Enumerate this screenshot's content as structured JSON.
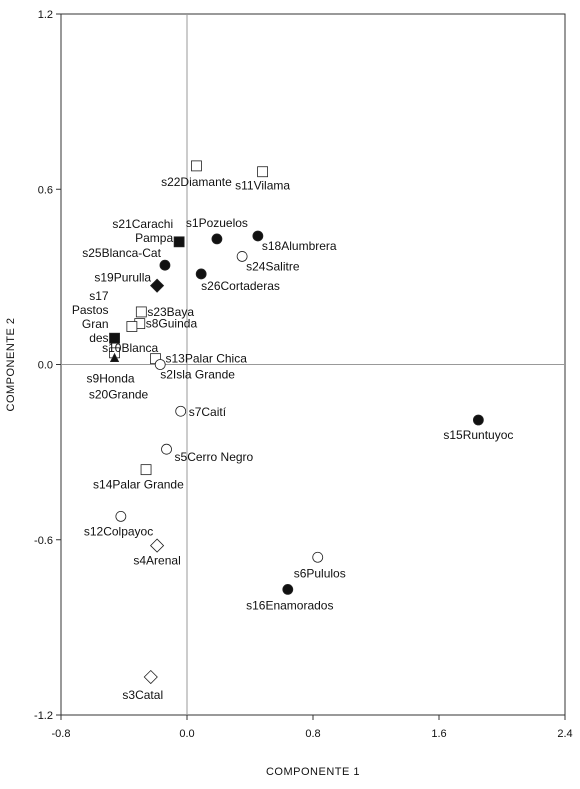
{
  "chart_data": {
    "type": "scatter",
    "xlabel": "COMPONENTE 1",
    "ylabel": "COMPONENTE 2",
    "xlim": [
      -0.8,
      2.4
    ],
    "ylim": [
      -1.2,
      1.2
    ],
    "xticks": [
      "-0.8",
      "0.0",
      "0.8",
      "1.6",
      "2.4"
    ],
    "xtick_values": [
      -0.8,
      0.0,
      0.8,
      1.6,
      2.4
    ],
    "yticks": [
      "1.2",
      "0.6",
      "0.0",
      "-0.6",
      "-1.2"
    ],
    "ytick_values": [
      1.2,
      0.6,
      0.0,
      -0.6,
      -1.2
    ],
    "reference_lines": {
      "x": 0,
      "y": 0
    },
    "points": [
      {
        "x": 0.06,
        "y": 0.68,
        "marker": "open-square",
        "label": [
          "s22Diamante"
        ],
        "anchor": "middle",
        "dx": 0,
        "dy": 20
      },
      {
        "x": 0.48,
        "y": 0.66,
        "marker": "open-square",
        "label": [
          "s11Vilama"
        ],
        "anchor": "middle",
        "dx": 0,
        "dy": 18
      },
      {
        "x": -0.05,
        "y": 0.42,
        "marker": "filled-square",
        "label": [
          "s21Carachi",
          "Pampa"
        ],
        "anchor": "end",
        "dx": -6,
        "dy": -14
      },
      {
        "x": 0.19,
        "y": 0.43,
        "marker": "filled-circle",
        "label": [
          "s1Pozuelos"
        ],
        "anchor": "middle",
        "dx": 0,
        "dy": -12
      },
      {
        "x": 0.45,
        "y": 0.44,
        "marker": "filled-circle",
        "label": [
          "s18Alumbrera"
        ],
        "anchor": "start",
        "dx": 4,
        "dy": 14
      },
      {
        "x": -0.14,
        "y": 0.34,
        "marker": "filled-circle",
        "label": [
          "s25Blanca-Cat"
        ],
        "anchor": "end",
        "dx": -4,
        "dy": -8
      },
      {
        "x": 0.35,
        "y": 0.37,
        "marker": "open-circle",
        "label": [
          "s24Salitre"
        ],
        "anchor": "start",
        "dx": 4,
        "dy": 14
      },
      {
        "x": 0.09,
        "y": 0.31,
        "marker": "filled-circle",
        "label": [
          "s26Cortaderas"
        ],
        "anchor": "start",
        "dx": 0,
        "dy": 16
      },
      {
        "x": -0.19,
        "y": 0.27,
        "marker": "filled-diamond",
        "label": [
          "s19Purulla"
        ],
        "anchor": "end",
        "dx": -6,
        "dy": -4
      },
      {
        "x": -0.29,
        "y": 0.18,
        "marker": "open-square",
        "label": [
          "s23Baya"
        ],
        "anchor": "start",
        "dx": 6,
        "dy": 4
      },
      {
        "x": -0.3,
        "y": 0.14,
        "marker": "open-square",
        "label": [
          "s8Guinda"
        ],
        "anchor": "start",
        "dx": 6,
        "dy": 4
      },
      {
        "x": -0.35,
        "y": 0.13,
        "marker": "open-square",
        "label": [],
        "anchor": "start",
        "dx": 0,
        "dy": 0
      },
      {
        "x": -0.46,
        "y": 0.09,
        "marker": "filled-square",
        "label": [
          "s17",
          "Pastos",
          "Gran",
          "des"
        ],
        "anchor": "end",
        "dx": -6,
        "dy": -38
      },
      {
        "x": -0.46,
        "y": 0.04,
        "marker": "open-square",
        "label": [],
        "anchor": "start",
        "dx": 0,
        "dy": 0
      },
      {
        "x": -0.46,
        "y": 0.02,
        "marker": "filled-triangle",
        "label": [],
        "anchor": "start",
        "dx": 0,
        "dy": 0
      },
      {
        "x": -0.2,
        "y": 0.02,
        "marker": "open-square",
        "label": [
          "s13Palar Chica"
        ],
        "anchor": "start",
        "dx": 10,
        "dy": 4
      },
      {
        "x": -0.17,
        "y": 0.0,
        "marker": "open-circle",
        "label": [
          "s2Isla Grande"
        ],
        "anchor": "start",
        "dx": 0,
        "dy": 14
      },
      {
        "x": -0.04,
        "y": -0.16,
        "marker": "open-circle",
        "label": [
          "s7Caití"
        ],
        "anchor": "start",
        "dx": 8,
        "dy": 5
      },
      {
        "x": 1.85,
        "y": -0.19,
        "marker": "filled-circle",
        "label": [
          "s15Runtuyoc"
        ],
        "anchor": "middle",
        "dx": 0,
        "dy": 19
      },
      {
        "x": -0.13,
        "y": -0.29,
        "marker": "open-circle",
        "label": [
          "s5Cerro Negro"
        ],
        "anchor": "start",
        "dx": 8,
        "dy": 12
      },
      {
        "x": -0.26,
        "y": -0.36,
        "marker": "open-square",
        "label": [
          "s14Palar Grande"
        ],
        "anchor": "start",
        "dx": -53,
        "dy": 19
      },
      {
        "x": -0.42,
        "y": -0.52,
        "marker": "open-circle",
        "label": [
          "s12Colpayoc"
        ],
        "anchor": "start",
        "dx": -37,
        "dy": 19
      },
      {
        "x": -0.19,
        "y": -0.62,
        "marker": "open-diamond",
        "label": [
          "s4Arenal"
        ],
        "anchor": "middle",
        "dx": 0,
        "dy": 19
      },
      {
        "x": 0.83,
        "y": -0.66,
        "marker": "open-circle",
        "label": [
          "s6Pululos"
        ],
        "anchor": "middle",
        "dx": 2,
        "dy": 20
      },
      {
        "x": 0.64,
        "y": -0.77,
        "marker": "filled-circle",
        "label": [
          "s16Enamorados"
        ],
        "anchor": "middle",
        "dx": 2,
        "dy": 20
      },
      {
        "x": -0.23,
        "y": -1.07,
        "marker": "open-diamond",
        "label": [
          "s3Catal"
        ],
        "anchor": "middle",
        "dx": -8,
        "dy": 22
      }
    ],
    "extra_labels": [
      {
        "text": "s10Blanca",
        "x": -0.45,
        "y": 0.09,
        "anchor": "start",
        "dx": -14,
        "dy": 14
      },
      {
        "text": "s9Honda",
        "x": -0.46,
        "y": 0.02,
        "anchor": "middle",
        "dx": -4,
        "dy": 24
      },
      {
        "text": "s20Grande",
        "x": -0.46,
        "y": 0.02,
        "anchor": "middle",
        "dx": 4,
        "dy": 40
      }
    ]
  }
}
